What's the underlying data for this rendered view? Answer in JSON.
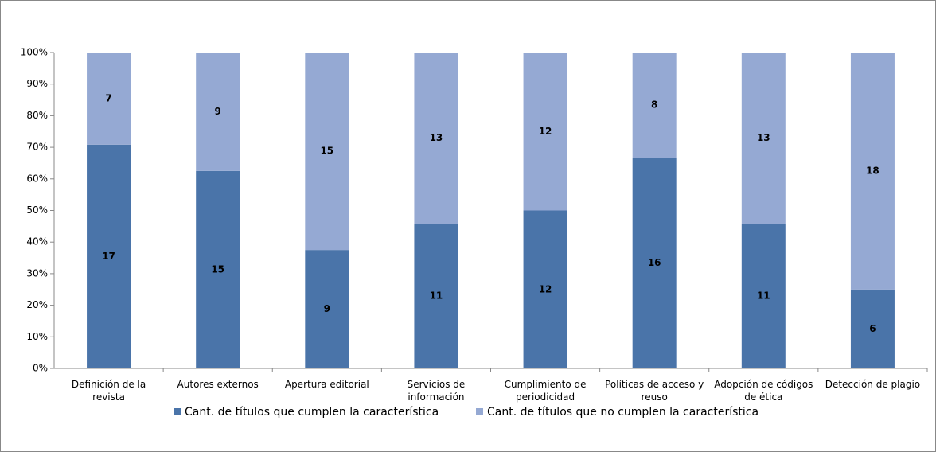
{
  "chart_data": {
    "type": "bar",
    "stacking": "percent",
    "categories": [
      "Definición de la revista",
      "Autores externos",
      "Apertura editorial",
      "Servicios de información",
      "Cumplimiento de periodicidad",
      "Políticas de acceso y reuso",
      "Adopción de códigos de ética",
      "Detección de plagio"
    ],
    "series": [
      {
        "name": "Cant. de títulos que cumplen la característica",
        "color": "#4a74a9",
        "values": [
          17,
          15,
          9,
          11,
          12,
          16,
          11,
          6
        ]
      },
      {
        "name": "Cant. de títulos que no cumplen la característica",
        "color": "#95a9d3",
        "values": [
          7,
          9,
          15,
          13,
          12,
          8,
          13,
          18
        ]
      }
    ],
    "ylim": [
      0,
      100
    ],
    "yticks": [
      {
        "value": 0,
        "label": "0%"
      },
      {
        "value": 10,
        "label": "10%"
      },
      {
        "value": 20,
        "label": "20%"
      },
      {
        "value": 30,
        "label": "30%"
      },
      {
        "value": 40,
        "label": "40%"
      },
      {
        "value": 50,
        "label": "50%"
      },
      {
        "value": 60,
        "label": "60%"
      },
      {
        "value": 70,
        "label": "70%"
      },
      {
        "value": 80,
        "label": "80%"
      },
      {
        "value": 90,
        "label": "90%"
      },
      {
        "value": 100,
        "label": "100%"
      }
    ],
    "grid": false,
    "legend": "bottom"
  }
}
